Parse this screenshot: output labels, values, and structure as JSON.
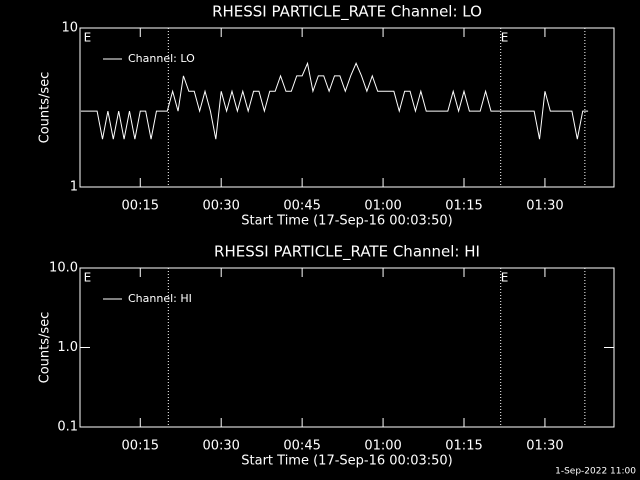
{
  "chart_data": [
    {
      "type": "line",
      "title": "RHESSI PARTICLE_RATE Channel: LO",
      "xlabel": "Start Time (17-Sep-16 00:03:50)",
      "ylabel": "Counts/sec",
      "log_y": true,
      "legend": "upper left",
      "xlim": [
        3.83,
        102.8
      ],
      "xticks": [
        {
          "value": 15,
          "label": "00:15"
        },
        {
          "value": 30,
          "label": "00:30"
        },
        {
          "value": 45,
          "label": "00:45"
        },
        {
          "value": 60,
          "label": "01:00"
        },
        {
          "value": 75,
          "label": "01:15"
        },
        {
          "value": 90,
          "label": "01:30"
        }
      ],
      "ylim": [
        1,
        10
      ],
      "yticks": [
        1,
        10
      ],
      "vlines": [
        20.2,
        81.8,
        97.4
      ],
      "annotations": [
        {
          "x": 4.5,
          "label": "E"
        },
        {
          "x": 81.8,
          "label": "E"
        }
      ],
      "series": [
        {
          "name": "Channel: LO",
          "color": "#ffffff",
          "x": [
            4,
            5,
            6,
            7,
            8,
            9,
            10,
            11,
            12,
            13,
            14,
            15,
            16,
            17,
            18,
            19,
            20,
            21,
            22,
            23,
            24,
            25,
            26,
            27,
            28,
            29,
            30,
            31,
            32,
            33,
            34,
            35,
            36,
            37,
            38,
            39,
            40,
            41,
            42,
            43,
            44,
            45,
            46,
            47,
            48,
            49,
            50,
            51,
            52,
            53,
            54,
            55,
            56,
            57,
            58,
            59,
            60,
            61,
            62,
            63,
            64,
            65,
            66,
            67,
            68,
            69,
            70,
            71,
            72,
            73,
            74,
            75,
            76,
            77,
            78,
            79,
            80,
            81,
            82,
            83,
            84,
            85,
            86,
            87,
            88,
            89,
            90,
            91,
            92,
            93,
            94,
            95,
            96,
            97,
            98
          ],
          "values": [
            3,
            3,
            3,
            3,
            2,
            3,
            2,
            3,
            2,
            3,
            2,
            3,
            3,
            2,
            3,
            3,
            3,
            4,
            3,
            5,
            4,
            4,
            3,
            4,
            3,
            2,
            4,
            3,
            4,
            3,
            4,
            3,
            4,
            4,
            3,
            4,
            4,
            5,
            4,
            4,
            5,
            5,
            6,
            4,
            5,
            5,
            4,
            5,
            5,
            4,
            5,
            6,
            5,
            4,
            5,
            4,
            4,
            4,
            4,
            3,
            4,
            4,
            3,
            4,
            3,
            3,
            3,
            3,
            3,
            4,
            3,
            4,
            3,
            3,
            3,
            4,
            3,
            3,
            3,
            3,
            3,
            3,
            3,
            3,
            3,
            2,
            4,
            3,
            3,
            3,
            3,
            3,
            2,
            3,
            3
          ]
        }
      ]
    },
    {
      "type": "line",
      "title": "RHESSI PARTICLE_RATE Channel: HI",
      "xlabel": "Start Time (17-Sep-16 00:03:50)",
      "ylabel": "Counts/sec",
      "log_y": true,
      "legend": "upper left",
      "xlim": [
        3.83,
        102.8
      ],
      "xticks": [
        {
          "value": 15,
          "label": "00:15"
        },
        {
          "value": 30,
          "label": "00:30"
        },
        {
          "value": 45,
          "label": "00:45"
        },
        {
          "value": 60,
          "label": "01:00"
        },
        {
          "value": 75,
          "label": "01:15"
        },
        {
          "value": 90,
          "label": "01:30"
        }
      ],
      "ylim": [
        0.1,
        10
      ],
      "yticks": [
        0.1,
        {
          "value": 1,
          "label": "1.0"
        },
        {
          "value": 10,
          "label": "10.0"
        }
      ],
      "vlines": [
        20.2,
        81.8,
        97.4
      ],
      "annotations": [
        {
          "x": 4.5,
          "label": "E"
        },
        {
          "x": 81.8,
          "label": "E"
        }
      ],
      "series": [
        {
          "name": "Channel: HI",
          "color": "#ffffff",
          "x": [],
          "values": []
        }
      ]
    }
  ],
  "footer": "1-Sep-2022 11:00"
}
